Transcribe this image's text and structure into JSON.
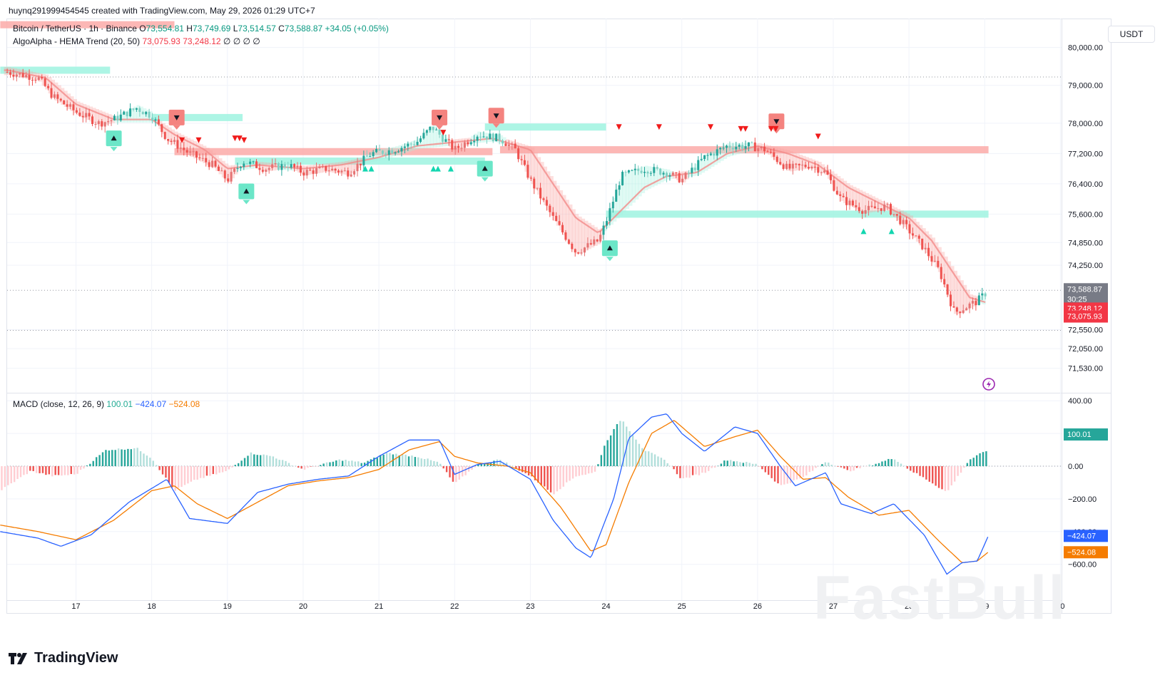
{
  "header": {
    "credit": "huynq291999454545 created with TradingView.com, May 29, 2026 01:29 UTC+7"
  },
  "legend": {
    "symbol": "Bitcoin / TetherUS · 1h · Binance",
    "o_label": "O",
    "o": "73,554.81",
    "h_label": "H",
    "h": "73,749.69",
    "l_label": "L",
    "l": "73,514.57",
    "c_label": "C",
    "c": "73,588.87",
    "change": "+34.05 (+0.05%)",
    "indicator": "AlgoAlpha - HEMA Trend",
    "indicator_params": "(20, 50)",
    "ind_v1": "73,075.93",
    "ind_v2": "73,248.12",
    "ind_zero": "∅ ∅ ∅ ∅",
    "macd": "MACD (close, 12, 26, 9)",
    "macd_hist": "100.01",
    "macd_line": "−424.07",
    "macd_signal": "−524.08"
  },
  "currency_button": "USDT",
  "brand": "TradingView",
  "watermark": "FastBull",
  "colors": {
    "up": "#26a69a",
    "down": "#ef5350",
    "bull_zone": "#9ff3e1",
    "bear_zone": "#fcaaa8",
    "macd": "#2962ff",
    "signal": "#f57c00"
  },
  "chart_data": [
    {
      "type": "candlestick",
      "title": "Bitcoin / TetherUS · 1h · Binance",
      "x_ticks": [
        "17",
        "18",
        "19",
        "20",
        "21",
        "22",
        "23",
        "24",
        "25",
        "26",
        "27",
        "28",
        "29",
        "30"
      ],
      "y_ticks": [
        "80,000.00",
        "79,000.00",
        "78,000.00",
        "77,200.00",
        "76,400.00",
        "75,600.00",
        "74,850.00",
        "74,250.00",
        "72,550.00",
        "72,050.00",
        "71,530.00"
      ],
      "y_tick_values": [
        80000,
        79000,
        78000,
        77200,
        76400,
        75600,
        74850,
        74250,
        72550,
        72050,
        71530
      ],
      "price_labels": {
        "last": "73,588.87",
        "countdown": "30:25",
        "hema_fast": "73,248.12",
        "hema_slow": "73,075.93"
      },
      "close_path": [
        [
          16.1,
          79350
        ],
        [
          16.5,
          79200
        ],
        [
          16.7,
          78700
        ],
        [
          17.0,
          78300
        ],
        [
          17.3,
          78000
        ],
        [
          17.5,
          78100
        ],
        [
          17.8,
          78400
        ],
        [
          18.0,
          78200
        ],
        [
          18.2,
          77600
        ],
        [
          18.5,
          77200
        ],
        [
          18.8,
          76900
        ],
        [
          19.0,
          76500
        ],
        [
          19.2,
          77000
        ],
        [
          19.5,
          76800
        ],
        [
          19.8,
          76900
        ],
        [
          20.0,
          76700
        ],
        [
          20.3,
          76800
        ],
        [
          20.6,
          76700
        ],
        [
          20.9,
          77200
        ],
        [
          21.2,
          77300
        ],
        [
          21.5,
          77500
        ],
        [
          21.7,
          77900
        ],
        [
          22.0,
          77300
        ],
        [
          22.3,
          77700
        ],
        [
          22.6,
          77600
        ],
        [
          22.8,
          77300
        ],
        [
          23.0,
          76500
        ],
        [
          23.3,
          75500
        ],
        [
          23.6,
          74600
        ],
        [
          23.9,
          74900
        ],
        [
          24.0,
          75400
        ],
        [
          24.2,
          76600
        ],
        [
          24.5,
          76800
        ],
        [
          24.8,
          76700
        ],
        [
          25.0,
          76500
        ],
        [
          25.3,
          77100
        ],
        [
          25.6,
          77400
        ],
        [
          25.9,
          77400
        ],
        [
          26.1,
          77300
        ],
        [
          26.4,
          76800
        ],
        [
          26.7,
          76900
        ],
        [
          26.9,
          76700
        ],
        [
          27.1,
          76000
        ],
        [
          27.4,
          75700
        ],
        [
          27.7,
          75800
        ],
        [
          27.9,
          75400
        ],
        [
          28.2,
          74700
        ],
        [
          28.4,
          74100
        ],
        [
          28.6,
          73000
        ],
        [
          28.9,
          73300
        ],
        [
          29.05,
          73588.87
        ]
      ],
      "hema_path": [
        [
          16.1,
          79400
        ],
        [
          16.6,
          79200
        ],
        [
          17.0,
          78500
        ],
        [
          17.5,
          78100
        ],
        [
          18.0,
          78100
        ],
        [
          18.3,
          77700
        ],
        [
          18.7,
          77300
        ],
        [
          19.0,
          76800
        ],
        [
          19.4,
          76900
        ],
        [
          20.0,
          76800
        ],
        [
          20.5,
          76900
        ],
        [
          21.0,
          77100
        ],
        [
          21.5,
          77400
        ],
        [
          22.0,
          77500
        ],
        [
          22.5,
          77600
        ],
        [
          23.0,
          77300
        ],
        [
          23.3,
          76400
        ],
        [
          23.6,
          75500
        ],
        [
          23.9,
          75100
        ],
        [
          24.2,
          75700
        ],
        [
          24.5,
          76300
        ],
        [
          24.8,
          76600
        ],
        [
          25.2,
          76700
        ],
        [
          25.6,
          77200
        ],
        [
          26.0,
          77400
        ],
        [
          26.4,
          77200
        ],
        [
          26.8,
          76900
        ],
        [
          27.2,
          76300
        ],
        [
          27.6,
          75900
        ],
        [
          28.0,
          75500
        ],
        [
          28.3,
          74900
        ],
        [
          28.6,
          74000
        ],
        [
          28.8,
          73400
        ],
        [
          29.05,
          73248.12
        ]
      ],
      "zones": [
        {
          "type": "bull",
          "from": 16.0,
          "to": 17.45,
          "price": 79400
        },
        {
          "type": "bull",
          "from": 18.0,
          "to": 19.2,
          "price": 78150
        },
        {
          "type": "bear",
          "from": 16.0,
          "to": 18.3,
          "price": 80600
        },
        {
          "type": "bear",
          "from": 18.3,
          "to": 22.5,
          "price": 77250
        },
        {
          "type": "bull",
          "from": 19.1,
          "to": 22.4,
          "price": 77000
        },
        {
          "type": "bull",
          "from": 22.4,
          "to": 24.0,
          "price": 77900
        },
        {
          "type": "bear",
          "from": 22.6,
          "to": 29.05,
          "price": 77300
        },
        {
          "type": "bull",
          "from": 24.0,
          "to": 29.05,
          "price": 75600
        }
      ],
      "signals": [
        {
          "x": 17.5,
          "price": 77600,
          "dir": "up",
          "big": true
        },
        {
          "x": 18.33,
          "price": 78150,
          "dir": "down",
          "big": true
        },
        {
          "x": 19.25,
          "price": 76200,
          "dir": "up",
          "big": true
        },
        {
          "x": 21.8,
          "price": 78150,
          "dir": "down",
          "big": true
        },
        {
          "x": 22.4,
          "price": 76800,
          "dir": "up",
          "big": true
        },
        {
          "x": 22.55,
          "price": 78200,
          "dir": "down",
          "big": true
        },
        {
          "x": 24.05,
          "price": 74700,
          "dir": "up",
          "big": true
        },
        {
          "x": 26.25,
          "price": 78050,
          "dir": "down",
          "big": true
        }
      ],
      "small_signals": [
        {
          "x": 18.4,
          "price": 77550,
          "dir": "down"
        },
        {
          "x": 18.62,
          "price": 77550,
          "dir": "down"
        },
        {
          "x": 19.1,
          "price": 77600,
          "dir": "down"
        },
        {
          "x": 19.16,
          "price": 77600,
          "dir": "down"
        },
        {
          "x": 19.22,
          "price": 77550,
          "dir": "down"
        },
        {
          "x": 20.82,
          "price": 76800,
          "dir": "up"
        },
        {
          "x": 20.9,
          "price": 76800,
          "dir": "up"
        },
        {
          "x": 21.72,
          "price": 76800,
          "dir": "up"
        },
        {
          "x": 21.78,
          "price": 76800,
          "dir": "up"
        },
        {
          "x": 21.95,
          "price": 76800,
          "dir": "up"
        },
        {
          "x": 21.85,
          "price": 77750,
          "dir": "down"
        },
        {
          "x": 24.17,
          "price": 77900,
          "dir": "down"
        },
        {
          "x": 24.7,
          "price": 77900,
          "dir": "down"
        },
        {
          "x": 25.38,
          "price": 77900,
          "dir": "down"
        },
        {
          "x": 25.78,
          "price": 77850,
          "dir": "down"
        },
        {
          "x": 25.84,
          "price": 77850,
          "dir": "down"
        },
        {
          "x": 26.18,
          "price": 77850,
          "dir": "down"
        },
        {
          "x": 26.24,
          "price": 77850,
          "dir": "down"
        },
        {
          "x": 26.8,
          "price": 77650,
          "dir": "down"
        },
        {
          "x": 27.4,
          "price": 75150,
          "dir": "up"
        },
        {
          "x": 27.77,
          "price": 75150,
          "dir": "up"
        }
      ]
    },
    {
      "type": "bar",
      "title": "MACD (close, 12, 26, 9)",
      "y_ticks": [
        "400.00",
        "200.00",
        "0.00",
        "−200.00",
        "−400.00",
        "−600.00"
      ],
      "y_tick_values": [
        400,
        200,
        0,
        -200,
        -400,
        -600
      ],
      "price_labels": {
        "hist": "100.01",
        "macd": "−424.07",
        "signal": "−524.08"
      },
      "macd_path": [
        [
          16.0,
          -400
        ],
        [
          16.5,
          -440
        ],
        [
          16.8,
          -490
        ],
        [
          17.2,
          -420
        ],
        [
          17.7,
          -220
        ],
        [
          18.2,
          -80
        ],
        [
          18.5,
          -320
        ],
        [
          19.0,
          -350
        ],
        [
          19.4,
          -160
        ],
        [
          19.8,
          -110
        ],
        [
          20.2,
          -80
        ],
        [
          20.6,
          -60
        ],
        [
          21.0,
          60
        ],
        [
          21.4,
          160
        ],
        [
          21.8,
          160
        ],
        [
          22.0,
          -50
        ],
        [
          22.3,
          10
        ],
        [
          22.6,
          30
        ],
        [
          23.0,
          -80
        ],
        [
          23.3,
          -330
        ],
        [
          23.6,
          -500
        ],
        [
          23.8,
          -560
        ],
        [
          24.1,
          -200
        ],
        [
          24.3,
          170
        ],
        [
          24.6,
          300
        ],
        [
          24.8,
          320
        ],
        [
          25.0,
          200
        ],
        [
          25.3,
          90
        ],
        [
          25.7,
          240
        ],
        [
          26.0,
          200
        ],
        [
          26.3,
          0
        ],
        [
          26.5,
          -120
        ],
        [
          26.9,
          -40
        ],
        [
          27.1,
          -230
        ],
        [
          27.5,
          -290
        ],
        [
          27.8,
          -230
        ],
        [
          28.2,
          -420
        ],
        [
          28.5,
          -660
        ],
        [
          28.7,
          -590
        ],
        [
          28.9,
          -580
        ],
        [
          29.05,
          -424.07
        ]
      ],
      "signal_path": [
        [
          16.0,
          -360
        ],
        [
          16.5,
          -400
        ],
        [
          17.0,
          -450
        ],
        [
          17.5,
          -330
        ],
        [
          18.0,
          -150
        ],
        [
          18.3,
          -120
        ],
        [
          18.6,
          -230
        ],
        [
          19.0,
          -320
        ],
        [
          19.4,
          -220
        ],
        [
          19.8,
          -120
        ],
        [
          20.2,
          -90
        ],
        [
          20.6,
          -70
        ],
        [
          21.0,
          -20
        ],
        [
          21.4,
          100
        ],
        [
          21.8,
          150
        ],
        [
          22.0,
          60
        ],
        [
          22.3,
          20
        ],
        [
          22.7,
          0
        ],
        [
          23.0,
          -40
        ],
        [
          23.4,
          -250
        ],
        [
          23.8,
          -520
        ],
        [
          24.0,
          -480
        ],
        [
          24.3,
          -100
        ],
        [
          24.6,
          200
        ],
        [
          24.9,
          280
        ],
        [
          25.3,
          120
        ],
        [
          25.7,
          180
        ],
        [
          26.0,
          220
        ],
        [
          26.3,
          60
        ],
        [
          26.6,
          -80
        ],
        [
          26.9,
          -70
        ],
        [
          27.2,
          -190
        ],
        [
          27.6,
          -300
        ],
        [
          28.0,
          -270
        ],
        [
          28.4,
          -460
        ],
        [
          28.7,
          -590
        ],
        [
          28.9,
          -580
        ],
        [
          29.05,
          -524.08
        ]
      ],
      "hist_path": [
        [
          16.0,
          -150
        ],
        [
          16.4,
          -30
        ],
        [
          16.7,
          -60
        ],
        [
          17.0,
          -50
        ],
        [
          17.4,
          100
        ],
        [
          17.8,
          110
        ],
        [
          18.0,
          50
        ],
        [
          18.3,
          -150
        ],
        [
          18.6,
          -80
        ],
        [
          19.0,
          -30
        ],
        [
          19.3,
          80
        ],
        [
          19.6,
          60
        ],
        [
          20.0,
          -20
        ],
        [
          20.5,
          40
        ],
        [
          20.8,
          20
        ],
        [
          21.1,
          80
        ],
        [
          21.5,
          60
        ],
        [
          21.8,
          20
        ],
        [
          22.0,
          -110
        ],
        [
          22.3,
          10
        ],
        [
          22.6,
          40
        ],
        [
          23.0,
          -60
        ],
        [
          23.3,
          -170
        ],
        [
          23.6,
          -60
        ],
        [
          23.85,
          -40
        ],
        [
          24.0,
          150
        ],
        [
          24.2,
          290
        ],
        [
          24.5,
          100
        ],
        [
          24.8,
          30
        ],
        [
          25.0,
          -80
        ],
        [
          25.3,
          -40
        ],
        [
          25.6,
          40
        ],
        [
          26.0,
          10
        ],
        [
          26.3,
          -120
        ],
        [
          26.6,
          -70
        ],
        [
          26.9,
          30
        ],
        [
          27.2,
          -30
        ],
        [
          27.6,
          20
        ],
        [
          27.8,
          50
        ],
        [
          28.0,
          -20
        ],
        [
          28.3,
          -100
        ],
        [
          28.5,
          -160
        ],
        [
          28.8,
          40
        ],
        [
          29.05,
          100.01
        ]
      ]
    }
  ]
}
